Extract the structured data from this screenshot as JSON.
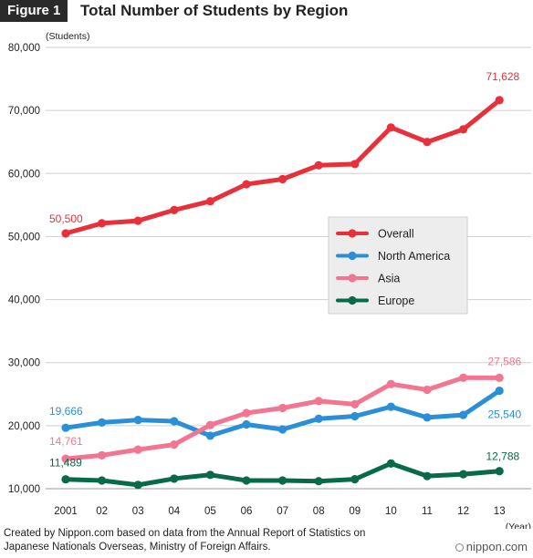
{
  "header": {
    "badge": "Figure 1",
    "title": "Total Number of Students by Region"
  },
  "chart_data": {
    "type": "line",
    "title": "Total Number of Students by Region",
    "ylabel": "(Students)",
    "xlabel": "(Year)",
    "ylim": [
      10000,
      80000
    ],
    "yticks": [
      10000,
      20000,
      30000,
      40000,
      50000,
      60000,
      70000,
      80000
    ],
    "ytick_labels": [
      "10,000",
      "20,000",
      "30,000",
      "40,000",
      "50,000",
      "60,000",
      "70,000",
      "80,000"
    ],
    "categories": [
      "2001",
      "02",
      "03",
      "04",
      "05",
      "06",
      "07",
      "08",
      "09",
      "10",
      "11",
      "12",
      "13"
    ],
    "grid": "horizontal",
    "legend_position": "center-right",
    "series": [
      {
        "name": "Overall",
        "color": "#e8303a",
        "values": [
          50500,
          52100,
          52500,
          54200,
          55600,
          58300,
          59100,
          61300,
          61500,
          67300,
          65000,
          67000,
          71628
        ]
      },
      {
        "name": "North America",
        "color": "#2b8fd8",
        "values": [
          19666,
          20500,
          20900,
          20700,
          18400,
          20200,
          19400,
          21100,
          21500,
          23000,
          21300,
          21700,
          25540
        ]
      },
      {
        "name": "Asia",
        "color": "#f27691",
        "values": [
          14761,
          15300,
          16200,
          17000,
          20100,
          22000,
          22800,
          23900,
          23400,
          26600,
          25700,
          27600,
          27586
        ]
      },
      {
        "name": "Europe",
        "color": "#086a48",
        "values": [
          11489,
          11300,
          10600,
          11600,
          12200,
          11300,
          11300,
          11200,
          11500,
          14000,
          12000,
          12300,
          12788
        ]
      }
    ],
    "annotations": [
      {
        "text": "50,500",
        "series": 0,
        "index": 0
      },
      {
        "text": "71,628",
        "series": 0,
        "index": 12
      },
      {
        "text": "19,666",
        "series": 1,
        "index": 0
      },
      {
        "text": "25,540",
        "series": 1,
        "index": 12
      },
      {
        "text": "14,761",
        "series": 2,
        "index": 0
      },
      {
        "text": "27,586",
        "series": 2,
        "index": 12
      },
      {
        "text": "11,489",
        "series": 3,
        "index": 0
      },
      {
        "text": "12,788",
        "series": 3,
        "index": 12
      }
    ]
  },
  "footer": {
    "source_line1": "Created by Nippon.com based on data from the Annual Report of Statistics on",
    "source_line2": "Japanese Nationals Overseas, Ministry of Foreign Affairs.",
    "brand": "nippon.com"
  }
}
